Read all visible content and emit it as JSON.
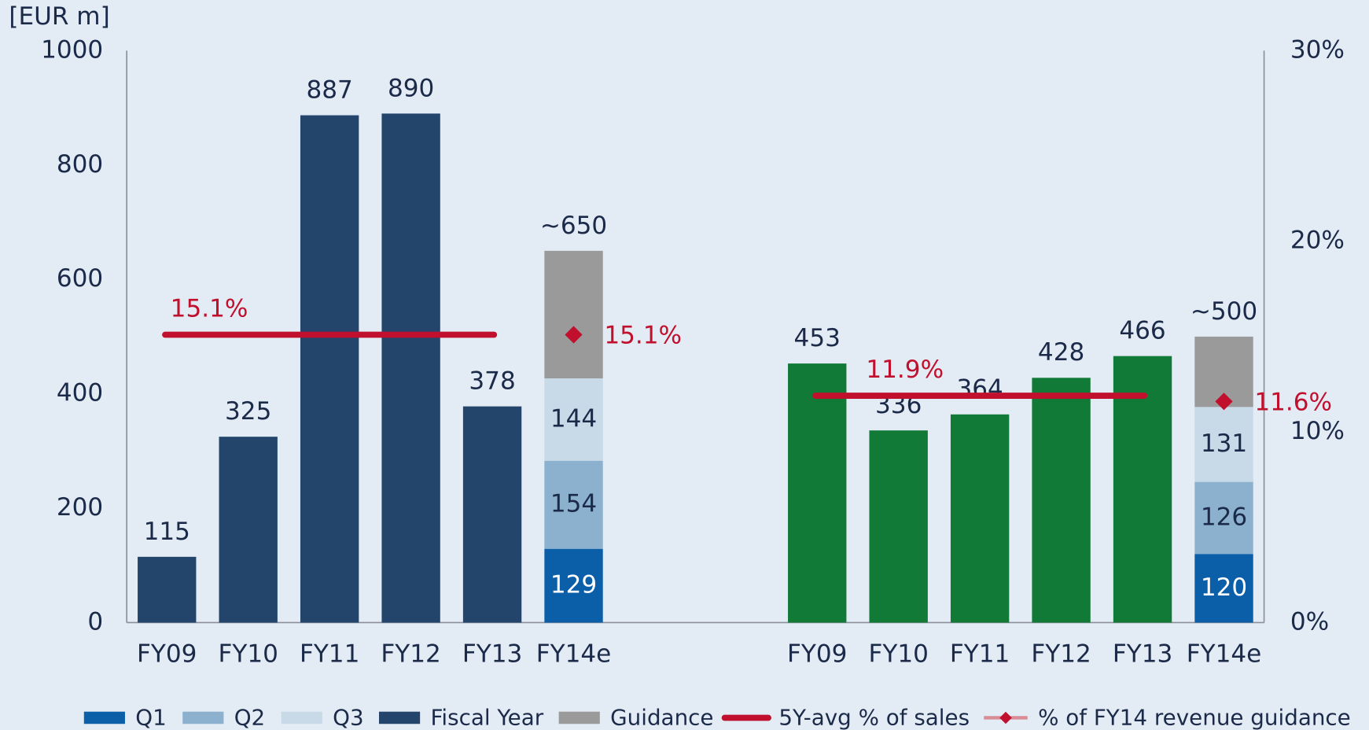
{
  "chart_data": {
    "type": "bar",
    "y_label": "[EUR m]",
    "ylim": [
      0,
      1000
    ],
    "yticks": [
      0,
      200,
      400,
      600,
      800,
      1000
    ],
    "y2lim": [
      0,
      30
    ],
    "y2ticks": [
      {
        "value": 0,
        "label": "0%"
      },
      {
        "value": 10,
        "label": "10%"
      },
      {
        "value": 20,
        "label": "20%"
      },
      {
        "value": 30,
        "label": "30%"
      }
    ],
    "legend": [
      {
        "name": "Q1",
        "color": "#0b5ea8"
      },
      {
        "name": "Q2",
        "color": "#8cb1cf"
      },
      {
        "name": "Q3",
        "color": "#c8d9e8"
      },
      {
        "name": "Fiscal Year",
        "color": "#24456b"
      },
      {
        "name": "Guidance",
        "color": "#9a9a9a"
      },
      {
        "name": "5Y-avg % of sales",
        "color": "#c0102e"
      },
      {
        "name": "% of FY14 revenue guidance",
        "color": "#d98c95"
      }
    ],
    "panels": [
      {
        "categories": [
          "FY09",
          "FY10",
          "FY11",
          "FY12",
          "FY13",
          "FY14e"
        ],
        "fy_color": "#24456b",
        "series": [
          [
            null,
            null,
            null,
            null,
            null,
            129
          ],
          [
            null,
            null,
            null,
            null,
            null,
            154
          ],
          [
            null,
            null,
            null,
            null,
            null,
            144
          ],
          [
            115,
            325,
            887,
            890,
            378,
            null
          ],
          [
            null,
            null,
            null,
            null,
            null,
            223
          ]
        ],
        "total": {
          "value": 650,
          "label": "~650"
        },
        "avg": {
          "value": 15.1,
          "label": "15.1%"
        },
        "guidance_pct": {
          "value": 15.1,
          "label": "15.1%"
        }
      },
      {
        "categories": [
          "FY09",
          "FY10",
          "FY11",
          "FY12",
          "FY13",
          "FY14e"
        ],
        "fy_color": "#127a37",
        "series": [
          [
            null,
            null,
            null,
            null,
            null,
            120
          ],
          [
            null,
            null,
            null,
            null,
            null,
            126
          ],
          [
            null,
            null,
            null,
            null,
            null,
            131
          ],
          [
            453,
            336,
            364,
            428,
            466,
            null
          ],
          [
            null,
            null,
            null,
            null,
            null,
            123
          ]
        ],
        "total": {
          "value": 500,
          "label": "~500"
        },
        "avg": {
          "value": 11.9,
          "label": "11.9%"
        },
        "guidance_pct": {
          "value": 11.6,
          "label": "11.6%"
        }
      }
    ]
  }
}
